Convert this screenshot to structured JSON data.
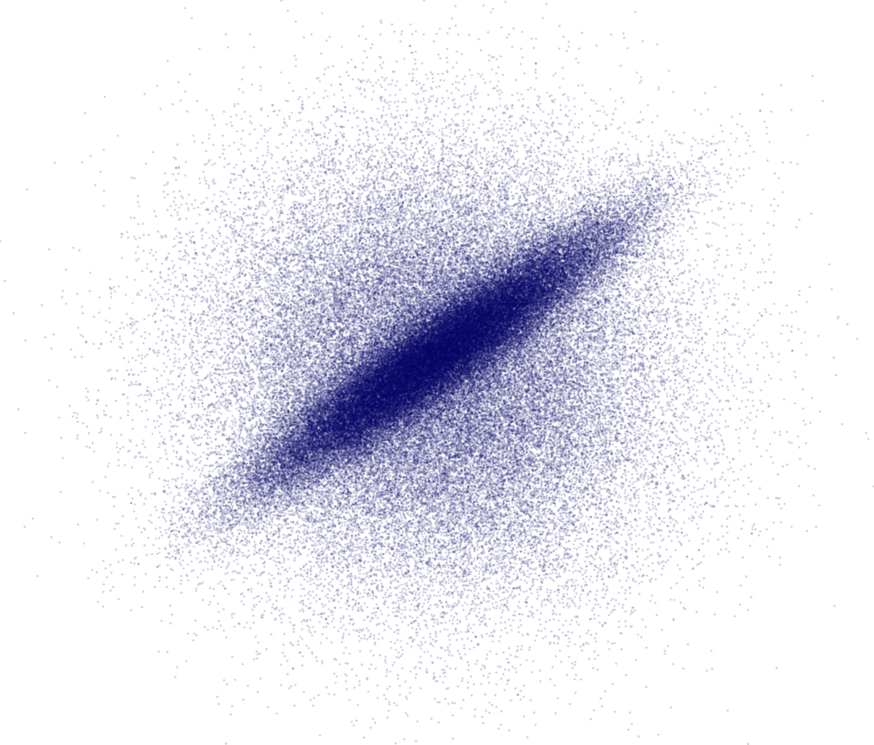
{
  "chart_data": {
    "type": "scatter",
    "title": "",
    "xlabel": "",
    "ylabel": "",
    "axes_visible": false,
    "grid": false,
    "legend": "none",
    "xlim": [
      -4.5,
      4.5
    ],
    "ylim": [
      -4.0,
      4.0
    ],
    "marker_color": "#000066",
    "marker_alpha": 0.25,
    "series": [
      {
        "role": "diffuse-cloud",
        "n_points": 60000,
        "distribution": "bivariate-normal",
        "mean": [
          0.0,
          0.0
        ],
        "std": [
          1.25,
          1.25
        ],
        "correlation": 0.0
      },
      {
        "role": "dense-core",
        "n_points": 60000,
        "distribution": "bivariate-normal",
        "mean": [
          0.0,
          0.2
        ],
        "std": [
          1.0,
          0.75
        ],
        "correlation": 0.93
      }
    ],
    "outliers": [
      {
        "x": -0.3,
        "y": 3.75
      },
      {
        "x": -3.9,
        "y": 0.35
      },
      {
        "x": 3.95,
        "y": 0.25
      },
      {
        "x": 3.5,
        "y": -1.85
      },
      {
        "x": -1.6,
        "y": -3.4
      },
      {
        "x": 0.9,
        "y": -3.7
      },
      {
        "x": 1.1,
        "y": 3.55
      },
      {
        "x": -3.4,
        "y": -1.5
      },
      {
        "x": -2.9,
        "y": 2.35
      },
      {
        "x": 3.1,
        "y": 2.55
      }
    ]
  }
}
